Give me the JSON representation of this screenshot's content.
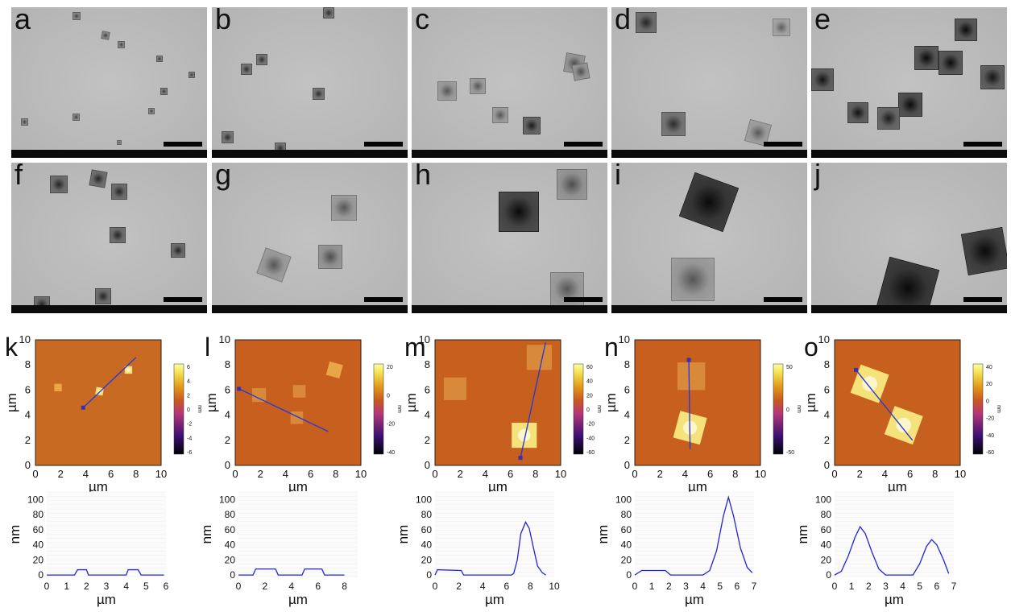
{
  "tem_labels": [
    "a",
    "b",
    "c",
    "d",
    "e",
    "f",
    "g",
    "h",
    "i",
    "j"
  ],
  "afm_labels": [
    "k",
    "l",
    "m",
    "n",
    "o"
  ],
  "afm_axis_unit": "µm",
  "afm_height_unit": "nm",
  "colorbar_ticks": [
    [
      "6",
      "4",
      "2",
      "0",
      "-2",
      "-4",
      "-6"
    ],
    [
      "20",
      "0",
      "-20",
      "-40"
    ],
    [
      "60",
      "40",
      "20",
      "0",
      "-20",
      "-40",
      "-60"
    ],
    [
      "50",
      "0",
      "-50"
    ],
    [
      "40",
      "20",
      "0",
      "-20",
      "-40",
      "-60"
    ]
  ],
  "chart_data": [
    {
      "type": "line",
      "panel": "k",
      "xlabel": "µm",
      "ylabel": "nm",
      "xlim": [
        0,
        6
      ],
      "ylim": [
        -2,
        110
      ],
      "x": [
        0,
        1.4,
        1.55,
        2.0,
        2.1,
        4.0,
        4.1,
        4.6,
        4.75,
        5.9
      ],
      "y": [
        0,
        0,
        7,
        7,
        0,
        0,
        7,
        7,
        0,
        0
      ]
    },
    {
      "type": "line",
      "panel": "l",
      "xlabel": "µm",
      "ylabel": "nm",
      "xlim": [
        0,
        9
      ],
      "ylim": [
        -2,
        110
      ],
      "x": [
        0,
        1.1,
        1.3,
        2.8,
        3.0,
        4.8,
        5.0,
        6.3,
        6.5,
        8.0
      ],
      "y": [
        0,
        0,
        8,
        8,
        0,
        0,
        8,
        8,
        0,
        0
      ]
    },
    {
      "type": "line",
      "panel": "m",
      "xlabel": "µm",
      "ylabel": "nm",
      "xlim": [
        0,
        10
      ],
      "ylim": [
        -2,
        110
      ],
      "x": [
        0,
        0.2,
        2.2,
        2.4,
        6.4,
        6.6,
        6.9,
        7.2,
        7.6,
        7.9,
        8.2,
        8.6,
        9.0,
        9.3
      ],
      "y": [
        0,
        7,
        6,
        0,
        0,
        2,
        20,
        55,
        70,
        62,
        40,
        12,
        3,
        0
      ]
    },
    {
      "type": "line",
      "panel": "n",
      "xlabel": "µm",
      "ylabel": "nm",
      "xlim": [
        0,
        7
      ],
      "ylim": [
        -2,
        110
      ],
      "x": [
        0,
        0.4,
        1.8,
        2.1,
        4.0,
        4.4,
        4.8,
        5.2,
        5.5,
        5.8,
        6.2,
        6.6,
        6.9
      ],
      "y": [
        0,
        6,
        6,
        0,
        0,
        6,
        32,
        78,
        103,
        78,
        36,
        10,
        3
      ]
    },
    {
      "type": "line",
      "panel": "o",
      "xlabel": "µm",
      "ylabel": "nm",
      "xlim": [
        0,
        7
      ],
      "ylim": [
        -2,
        110
      ],
      "x": [
        0,
        0.4,
        0.8,
        1.2,
        1.5,
        1.8,
        2.2,
        2.6,
        3.0,
        4.6,
        5.0,
        5.4,
        5.7,
        6.0,
        6.4,
        6.7
      ],
      "y": [
        0,
        5,
        25,
        50,
        64,
        55,
        30,
        8,
        0,
        0,
        15,
        38,
        47,
        40,
        20,
        2
      ]
    }
  ]
}
